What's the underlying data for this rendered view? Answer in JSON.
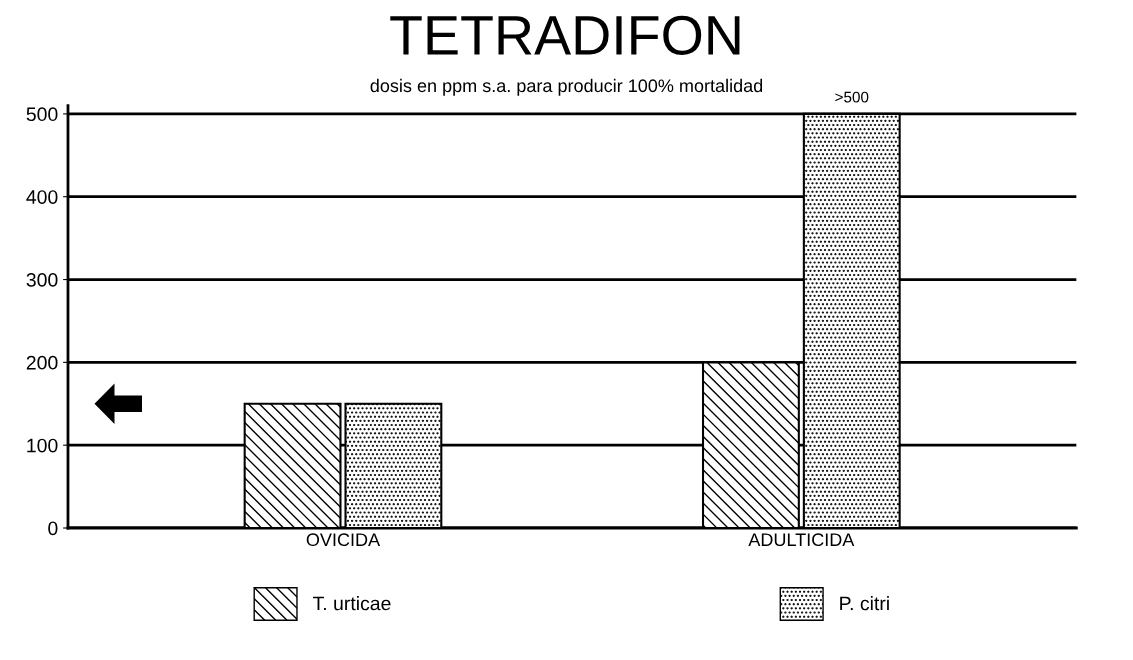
{
  "chart_data": {
    "type": "bar",
    "title": "TETRADIFON",
    "subtitle": "dosis en ppm s.a. para producir 100% mortalidad",
    "categories": [
      "OVICIDA",
      "ADULTICIDA"
    ],
    "series": [
      {
        "name": "T. urticae",
        "color": "#000000",
        "values": [
          150,
          200
        ]
      },
      {
        "name": "P. citri",
        "color": "#000000",
        "values": [
          150,
          500
        ],
        "value_labels": [
          null,
          ">500"
        ]
      }
    ],
    "ylim": [
      0,
      510
    ],
    "yticks": [
      0,
      100,
      200,
      300,
      400,
      500
    ],
    "grid": "y",
    "legend": "bottom"
  }
}
